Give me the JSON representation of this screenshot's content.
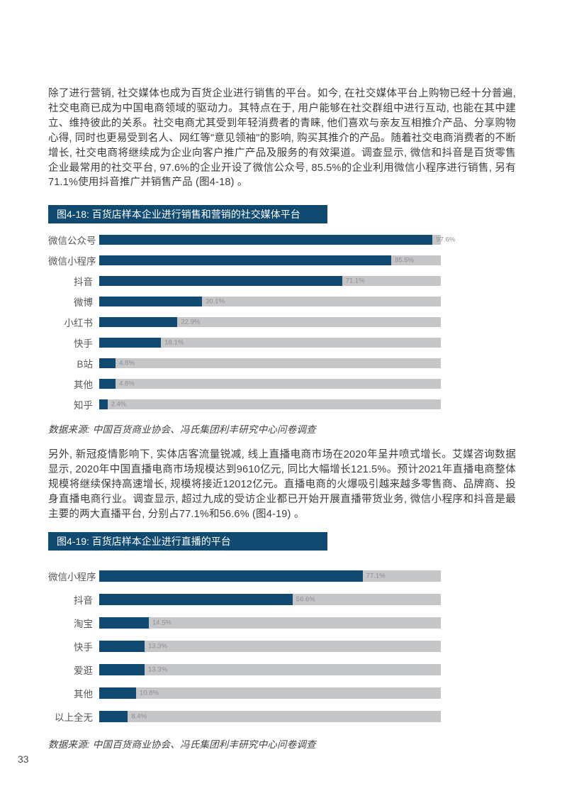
{
  "page_number": "33",
  "paragraphs": {
    "p1": "除了进行营销, 社交媒体也成为百货企业进行销售的平台。如今, 在社交媒体平台上购物已经十分普遍, 社交电商已成为中国电商领域的驱动力。其特点在于, 用户能够在社交群组中进行互动, 也能在其中建立、维持彼此的关系。社交电商尤其受到年轻消费者的青睐, 他们喜欢与亲友互相推介产品、分享购物心得, 同时也更易受到名人、网红等\"意见领袖\"的影响, 购买其推介的产品。随着社交电商消费者的不断增长, 社交电商将继续成为企业向客户推广产品及服务的有效渠道。调查显示, 微信和抖音是百货零售企业最常用的社交平台, 97.6%的企业开设了微信公众号, 85.5%的企业利用微信小程序进行销售, 另有71.1%使用抖音推广并销售产品 (图4-18) 。",
    "p2": "另外, 新冠疫情影响下, 实体店客流量锐减, 线上直播电商市场在2020年呈井喷式增长。艾媒咨询数据显示, 2020年中国直播电商市场规模达到9610亿元, 同比大幅增长121.5%。预计2021年直播电商整体规模将继续保持高速增长, 规模将接近12012亿元。直播电商的火爆吸引越来越多零售商、品牌商、投身直播电商行业。调查显示, 超过九成的受访企业都已开始开展直播带货业务, 微信小程序和抖音是最主要的两大直播平台, 分别占77.1%和56.6% (图4-19) 。"
  },
  "sources": {
    "source1": "数据来源: 中国百货商业协会、冯氏集团利丰研究中心问卷调查",
    "source2": "数据来源: 中国百货商业协会、冯氏集团利丰研究中心问卷调查"
  },
  "colors": {
    "bar": "#114a70",
    "track": "#c5c6c8",
    "banner_bg": "#114a70",
    "value_label": "#8f9093"
  },
  "chart_data": [
    {
      "type": "bar",
      "orientation": "horizontal",
      "title": "图4-18: 百货店样本企业进行销售和营销的社交媒体平台",
      "categories": [
        "微信公众号",
        "微信小程序",
        "抖音",
        "微博",
        "小红书",
        "快手",
        "B站",
        "其他",
        "知乎"
      ],
      "values": [
        97.6,
        85.5,
        71.1,
        30.1,
        22.9,
        18.1,
        4.8,
        4.8,
        2.4
      ],
      "value_labels": [
        "97.6%",
        "85.5%",
        "71.1%",
        "30.1%",
        "22.9%",
        "18.1%",
        "4.8%",
        "4.8%",
        "2.4%"
      ],
      "xlim": [
        0,
        100
      ],
      "grid": false,
      "legend": false,
      "source": "数据来源: 中国百货商业协会、冯氏集团利丰研究中心问卷调查"
    },
    {
      "type": "bar",
      "orientation": "horizontal",
      "title": "图4-19: 百货店样本企业进行直播的平台",
      "categories": [
        "微信小程序",
        "抖音",
        "淘宝",
        "快手",
        "爱逛",
        "其他",
        "以上全无"
      ],
      "values": [
        77.1,
        56.6,
        14.5,
        13.3,
        13.3,
        10.8,
        8.4
      ],
      "value_labels": [
        "77.1%",
        "56.6%",
        "14.5%",
        "13.3%",
        "13.3%",
        "10.8%",
        "8.4%"
      ],
      "xlim": [
        0,
        100
      ],
      "grid": false,
      "legend": false,
      "source": "数据来源: 中国百货商业协会、冯氏集团利丰研究中心问卷调查"
    }
  ]
}
